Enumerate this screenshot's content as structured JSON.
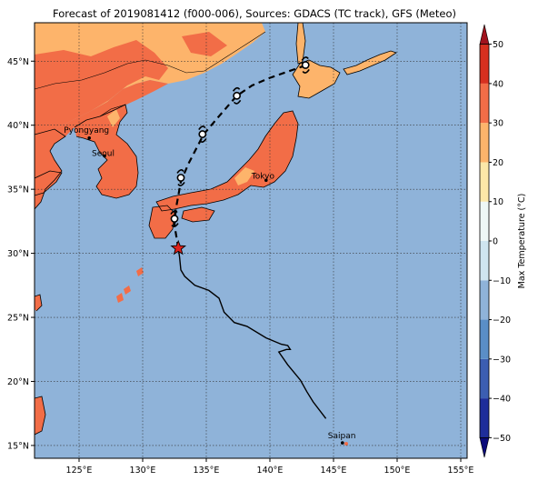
{
  "title": "Forecast of 2019081412 (f000-006), Sources: GDACS (TC track), GFS (Meteo)",
  "map": {
    "lon_range": [
      121.5,
      155.5
    ],
    "lat_range": [
      14,
      48
    ],
    "lon_ticks": [
      {
        "value": 125,
        "label": "125°E"
      },
      {
        "value": 130,
        "label": "130°E"
      },
      {
        "value": 135,
        "label": "135°E"
      },
      {
        "value": 140,
        "label": "140°E"
      },
      {
        "value": 145,
        "label": "145°E"
      },
      {
        "value": 150,
        "label": "150°E"
      },
      {
        "value": 155,
        "label": "155°E"
      }
    ],
    "lat_ticks": [
      {
        "value": 15,
        "label": "15°N"
      },
      {
        "value": 20,
        "label": "20°N"
      },
      {
        "value": 25,
        "label": "25°N"
      },
      {
        "value": 30,
        "label": "30°N"
      },
      {
        "value": 35,
        "label": "35°N"
      },
      {
        "value": 40,
        "label": "40°N"
      },
      {
        "value": 45,
        "label": "45°N"
      }
    ],
    "gridlines": true,
    "colors": {
      "ocean": "#8fb3d9",
      "land_warm": "#f26d47",
      "land_mild": "#fdb46b",
      "track": "#000000",
      "storm_marker": "#e0211b"
    },
    "cities": [
      {
        "name": "Pyongyang",
        "lon": 125.8,
        "lat": 39.0
      },
      {
        "name": "Seoul",
        "lon": 127.0,
        "lat": 37.6
      },
      {
        "name": "Tokyo",
        "lon": 139.7,
        "lat": 35.7
      },
      {
        "name": "Saipan",
        "lon": 145.7,
        "lat": 15.2
      }
    ],
    "past_track": [
      [
        144.4,
        17.1
      ],
      [
        143.4,
        18.4
      ],
      [
        142.9,
        19.2
      ],
      [
        142.4,
        20.1
      ],
      [
        141.4,
        21.3
      ],
      [
        140.7,
        22.3
      ],
      [
        141.3,
        22.5
      ],
      [
        141.6,
        22.5
      ],
      [
        141.4,
        22.8
      ],
      [
        140.9,
        22.9
      ],
      [
        139.7,
        23.4
      ],
      [
        138.2,
        24.3
      ],
      [
        137.2,
        24.6
      ],
      [
        136.4,
        25.4
      ],
      [
        136.0,
        26.5
      ],
      [
        135.2,
        27.1
      ],
      [
        134.1,
        27.5
      ],
      [
        133.3,
        28.2
      ],
      [
        133.0,
        28.7
      ],
      [
        132.9,
        29.7
      ],
      [
        132.8,
        30.4
      ]
    ],
    "storm_position": {
      "lon": 132.8,
      "lat": 30.4
    },
    "forecast_track": [
      [
        132.8,
        30.4
      ],
      [
        132.5,
        32.2
      ],
      [
        132.6,
        33.4
      ],
      [
        133.0,
        35.6
      ],
      [
        133.6,
        37.0
      ],
      [
        134.8,
        39.3
      ],
      [
        136.0,
        40.7
      ],
      [
        137.4,
        42.3
      ],
      [
        138.6,
        43.1
      ],
      [
        140.0,
        43.7
      ],
      [
        142.6,
        44.6
      ]
    ],
    "forecast_points": [
      {
        "lon": 132.5,
        "lat": 32.7
      },
      {
        "lon": 133.0,
        "lat": 35.9
      },
      {
        "lon": 134.7,
        "lat": 39.3
      },
      {
        "lon": 137.4,
        "lat": 42.3
      },
      {
        "lon": 142.8,
        "lat": 44.7
      }
    ]
  },
  "colorbar": {
    "label": "Max Temperature (°C)",
    "min": -55,
    "max": 55,
    "bounds": [
      -55,
      -50,
      -40,
      -30,
      -20,
      -10,
      0,
      10,
      20,
      30,
      40,
      50,
      55
    ],
    "colors": [
      "#0b0b7a",
      "#1e2d9a",
      "#3c5eb2",
      "#5a8ec7",
      "#8fb3d9",
      "#cfe5f0",
      "#eef7f6",
      "#fce7a8",
      "#fdb46b",
      "#f26d47",
      "#d7301f",
      "#a0121d",
      "#70001c"
    ],
    "ticks": [
      {
        "value": -50,
        "label": "−50"
      },
      {
        "value": -40,
        "label": "−40"
      },
      {
        "value": -30,
        "label": "−30"
      },
      {
        "value": -20,
        "label": "−20"
      },
      {
        "value": -10,
        "label": "−10"
      },
      {
        "value": 0,
        "label": "0"
      },
      {
        "value": 10,
        "label": "10"
      },
      {
        "value": 20,
        "label": "20"
      },
      {
        "value": 30,
        "label": "30"
      },
      {
        "value": 40,
        "label": "40"
      },
      {
        "value": 50,
        "label": "50"
      }
    ]
  }
}
